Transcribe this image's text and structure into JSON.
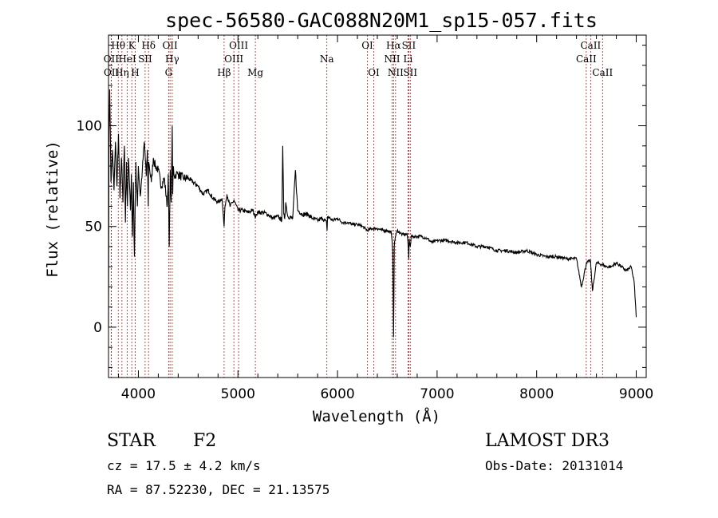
{
  "chart_data": {
    "type": "line",
    "title": "spec-56580-GAC088N20M1_sp15-057.fits",
    "xlabel": "Wavelength (Å)",
    "ylabel": "Flux (relative)",
    "xlim": [
      3700,
      9100
    ],
    "ylim": [
      -25,
      145
    ],
    "xticks": [
      4000,
      5000,
      6000,
      7000,
      8000,
      9000
    ],
    "yticks": [
      0,
      50,
      100
    ],
    "series": [
      {
        "name": "spectrum",
        "x": [
          3700,
          3705,
          3712,
          3725,
          3740,
          3755,
          3770,
          3785,
          3800,
          3815,
          3830,
          3845,
          3860,
          3870,
          3880,
          3890,
          3900,
          3920,
          3930,
          3940,
          3950,
          3960,
          3968,
          3975,
          3980,
          3990,
          4000,
          4020,
          4040,
          4060,
          4080,
          4090,
          4100,
          4102,
          4110,
          4130,
          4150,
          4170,
          4200,
          4230,
          4260,
          4290,
          4300,
          4310,
          4320,
          4330,
          4340,
          4345,
          4350,
          4360,
          4380,
          4400,
          4450,
          4500,
          4550,
          4600,
          4650,
          4700,
          4750,
          4800,
          4840,
          4855,
          4861,
          4870,
          4890,
          4920,
          4960,
          5000,
          5050,
          5100,
          5150,
          5170,
          5183,
          5200,
          5250,
          5300,
          5350,
          5400,
          5440,
          5450,
          5460,
          5470,
          5480,
          5500,
          5550,
          5577,
          5600,
          5650,
          5700,
          5750,
          5800,
          5850,
          5890,
          5895,
          5900,
          5950,
          6000,
          6050,
          6100,
          6150,
          6200,
          6250,
          6300,
          6350,
          6400,
          6450,
          6500,
          6540,
          6555,
          6563,
          6570,
          6580,
          6600,
          6650,
          6700,
          6710,
          6716,
          6720,
          6731,
          6740,
          6800,
          6850,
          6900,
          6950,
          7000,
          7100,
          7200,
          7300,
          7400,
          7500,
          7600,
          7700,
          7800,
          7900,
          8000,
          8100,
          8200,
          8300,
          8400,
          8450,
          8500,
          8540,
          8560,
          8600,
          8660,
          8700,
          8750,
          8800,
          8850,
          8900,
          8950,
          8980,
          9000
        ],
        "y": [
          0,
          98,
          118,
          72,
          88,
          68,
          92,
          70,
          96,
          64,
          84,
          62,
          90,
          52,
          82,
          60,
          84,
          58,
          76,
          45,
          72,
          35,
          62,
          82,
          72,
          60,
          80,
          65,
          78,
          92,
          75,
          88,
          60,
          82,
          80,
          72,
          84,
          80,
          78,
          70,
          74,
          60,
          76,
          40,
          78,
          62,
          100,
          66,
          80,
          75,
          76,
          76,
          74,
          74,
          72,
          70,
          66,
          68,
          64,
          62,
          64,
          54,
          50,
          60,
          66,
          60,
          63,
          58,
          58,
          57,
          58,
          55,
          56,
          57,
          57,
          56,
          54,
          55,
          53,
          90,
          56,
          54,
          62,
          55,
          54,
          78,
          58,
          56,
          56,
          54,
          53,
          54,
          52,
          48,
          55,
          53,
          54,
          52,
          52,
          51,
          51,
          50,
          48,
          49,
          49,
          48,
          48,
          47,
          38,
          -5,
          40,
          45,
          48,
          46,
          46,
          40,
          34,
          44,
          40,
          45,
          45,
          45,
          44,
          42,
          43,
          43,
          42,
          42,
          40,
          40,
          38,
          38,
          37,
          38,
          36,
          35,
          35,
          34,
          34,
          20,
          32,
          33,
          18,
          32,
          31,
          30,
          30,
          32,
          30,
          28,
          30,
          22,
          5
        ]
      }
    ],
    "line_markers": [
      {
        "label": "Hθ",
        "wl": 3798,
        "row": 1
      },
      {
        "label": "OII",
        "wl": 3727,
        "row": 2
      },
      {
        "label": "OII",
        "wl": 3729,
        "row": 3
      },
      {
        "label": "Hη",
        "wl": 3835,
        "row": 3
      },
      {
        "label": "K",
        "wl": 3934,
        "row": 1
      },
      {
        "label": "HeI",
        "wl": 3889,
        "row": 2
      },
      {
        "label": "SII",
        "wl": 4068,
        "row": 2
      },
      {
        "label": "H",
        "wl": 3968,
        "row": 3
      },
      {
        "label": "Hδ",
        "wl": 4102,
        "row": 1
      },
      {
        "label": "OII",
        "wl": 4318,
        "row": 1
      },
      {
        "label": "Hγ",
        "wl": 4340,
        "row": 2
      },
      {
        "label": "G",
        "wl": 4304,
        "row": 3
      },
      {
        "label": "OIII",
        "wl": 5007,
        "row": 1
      },
      {
        "label": "OIII",
        "wl": 4959,
        "row": 2
      },
      {
        "label": "Hβ",
        "wl": 4861,
        "row": 3
      },
      {
        "label": "Mg",
        "wl": 5175,
        "row": 3
      },
      {
        "label": "Na",
        "wl": 5893,
        "row": 2
      },
      {
        "label": "OI",
        "wl": 6300,
        "row": 1
      },
      {
        "label": "OI",
        "wl": 6364,
        "row": 3
      },
      {
        "label": "Hα",
        "wl": 6563,
        "row": 1
      },
      {
        "label": "SII",
        "wl": 6716,
        "row": 1
      },
      {
        "label": "NII",
        "wl": 6548,
        "row": 2
      },
      {
        "label": "Li",
        "wl": 6708,
        "row": 2
      },
      {
        "label": "NII",
        "wl": 6583,
        "row": 3
      },
      {
        "label": "SII",
        "wl": 6731,
        "row": 3
      },
      {
        "label": "CaII",
        "wl": 8542,
        "row": 1
      },
      {
        "label": "CaII",
        "wl": 8498,
        "row": 2
      },
      {
        "label": "CaII",
        "wl": 8662,
        "row": 3
      }
    ]
  },
  "info": {
    "object_class": "STAR",
    "subclass": "F2",
    "survey": "LAMOST DR3",
    "cz": "cz = 17.5 ± 4.2 km/s",
    "obs_date": "Obs-Date: 20131014",
    "coords": "RA =  87.52230, DEC =  21.13575"
  }
}
